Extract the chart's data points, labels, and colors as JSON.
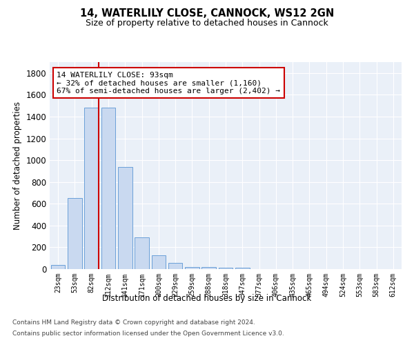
{
  "title1": "14, WATERLILY CLOSE, CANNOCK, WS12 2GN",
  "title2": "Size of property relative to detached houses in Cannock",
  "xlabel": "Distribution of detached houses by size in Cannock",
  "ylabel": "Number of detached properties",
  "categories": [
    "23sqm",
    "53sqm",
    "82sqm",
    "112sqm",
    "141sqm",
    "171sqm",
    "200sqm",
    "229sqm",
    "259sqm",
    "288sqm",
    "318sqm",
    "347sqm",
    "377sqm",
    "406sqm",
    "435sqm",
    "465sqm",
    "494sqm",
    "524sqm",
    "553sqm",
    "583sqm",
    "612sqm"
  ],
  "values": [
    40,
    650,
    1480,
    1480,
    935,
    290,
    125,
    60,
    22,
    22,
    14,
    14,
    0,
    0,
    0,
    0,
    0,
    0,
    0,
    0,
    0
  ],
  "bar_color": "#c9d9f0",
  "bar_edge_color": "#6a9fd8",
  "vline_x_index": 2,
  "vline_color": "#cc0000",
  "annotation_text": "14 WATERLILY CLOSE: 93sqm\n← 32% of detached houses are smaller (1,160)\n67% of semi-detached houses are larger (2,402) →",
  "annotation_box_color": "#ffffff",
  "annotation_box_edge_color": "#cc0000",
  "ylim": [
    0,
    1900
  ],
  "yticks": [
    0,
    200,
    400,
    600,
    800,
    1000,
    1200,
    1400,
    1600,
    1800
  ],
  "bg_color": "#eaf0f8",
  "footer1": "Contains HM Land Registry data © Crown copyright and database right 2024.",
  "footer2": "Contains public sector information licensed under the Open Government Licence v3.0."
}
